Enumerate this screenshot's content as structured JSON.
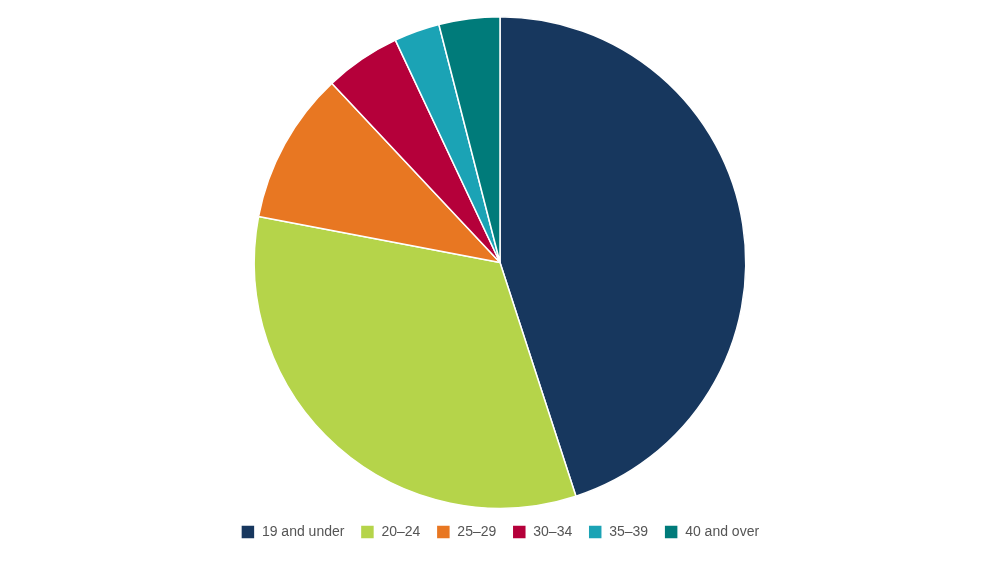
{
  "chart_data": {
    "type": "pie",
    "categories": [
      "19 and under",
      "20–24",
      "25–29",
      "30–34",
      "35–39",
      "40 and over"
    ],
    "values": [
      45,
      33,
      10,
      5,
      3,
      4
    ],
    "colors": [
      "#17375e",
      "#b5d44a",
      "#e87722",
      "#b5003a",
      "#1ba3b5",
      "#007b7a"
    ],
    "legend": "bottom"
  }
}
